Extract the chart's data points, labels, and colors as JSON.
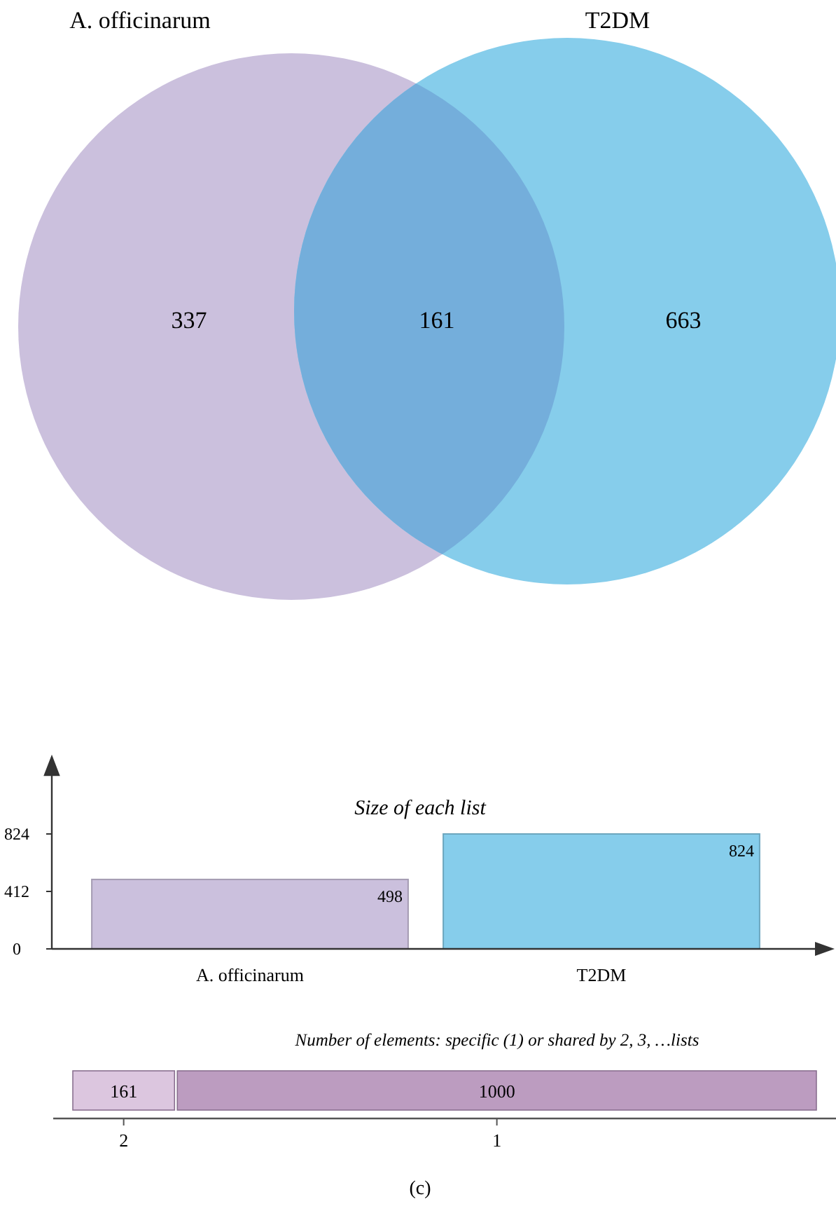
{
  "chart_data": [
    {
      "type": "other",
      "categories": [
        "A. officinarum",
        null,
        "T2DM"
      ],
      "values": [
        337,
        161,
        663
      ],
      "colors": [
        "#cbc0dd",
        "#74aedb",
        "#86cdeb"
      ],
      "data_labels": true
    },
    {
      "type": "bar",
      "title": "Size of each list",
      "categories": [
        "A. officinarum",
        "T2DM"
      ],
      "values": [
        498,
        824
      ],
      "colors": [
        "#cbc0dd",
        "#86cdeb"
      ],
      "ylim": [
        0,
        824
      ],
      "yticks": [
        0,
        412,
        824
      ],
      "data_labels": true
    },
    {
      "type": "other",
      "title": "Number of elements: specific (1) or shared by 2, 3, …lists",
      "categories": [
        "2",
        "1"
      ],
      "values": [
        161,
        1000
      ],
      "colors": [
        "#dcc6df",
        "#bc9cc0"
      ],
      "data_labels": true,
      "annotations": [
        "(c)"
      ]
    }
  ]
}
